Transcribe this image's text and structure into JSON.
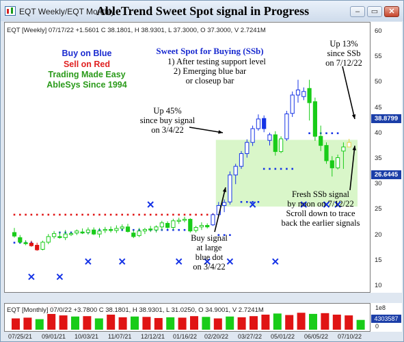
{
  "window": {
    "tabs": "EQT Weekly/EQT Monthly",
    "title": "AbleTrend Sweet Spot signal in Progress",
    "buttons": {
      "minimize": "–",
      "restore": "▭",
      "close": "✕"
    }
  },
  "weekly_panel": {
    "header": "EQT [Weekly] 07/17/22 +1.5601 C 38.1801, H 38.9301, L 37.3000, O 37.3000, V 2.7241M",
    "price_tag": "38.8799",
    "support_tag": "26.6445"
  },
  "monthly_panel": {
    "header": "EQT [Monthly] 07/0/22 +3.7800 C 38.1801, H 38.9301, L 31.0250, O 34.9001, V 2.7241M",
    "scale_label": "1e8",
    "volume_tag": "4303587",
    "zero_label": "0"
  },
  "annotations": {
    "legend": [
      "Buy on Blue",
      "Sell on Red",
      "Trading Made Easy",
      "AbleSys Since 1994"
    ],
    "sweet_spot": [
      "Sweet Spot for Buying (SSb)",
      "1) After testing support level",
      "2) Emerging blue bar",
      "or closeup bar"
    ],
    "up45": [
      "Up 45%",
      "since buy signal",
      "on 3/4/22"
    ],
    "up13": [
      "Up 13%",
      "since SSb",
      "on 7/12/22"
    ],
    "buy_signal": [
      "Buy signal",
      "at large",
      "blue dot",
      "on 3/4/22"
    ],
    "fresh_ssb": [
      "Fresh SSb signal",
      "by noon on 7/12/22",
      "Scroll down to trace",
      "back the earlier signals"
    ]
  },
  "colors": {
    "up": "#19cc19",
    "down": "#e01414",
    "blue_bar": "#1432e6",
    "dot_red": "#e01414",
    "dot_blue": "#1432e6",
    "sweet_spot_zone": "#d2f5c0",
    "price_tag": "#1b3ea8"
  },
  "chart_data": [
    {
      "type": "candlestick",
      "title": "EQT [Weekly]",
      "y_ticks": [
        10,
        15,
        20,
        25,
        30,
        35,
        40,
        45,
        50,
        55,
        60
      ],
      "ylim": [
        8.8,
        61.2
      ],
      "x_ticks": [
        "07/25/21",
        "09/01/21",
        "10/03/21",
        "11/07/21",
        "12/12/21",
        "01/16/22",
        "02/20/22",
        "03/27/22",
        "05/01/22",
        "06/05/22",
        "07/10/22"
      ],
      "weeks": [
        {
          "o": 20.5,
          "h": 21.4,
          "l": 19.5,
          "c": 19.8,
          "col": "g"
        },
        {
          "o": 19.5,
          "h": 20.0,
          "l": 18.4,
          "c": 18.6,
          "col": "g"
        },
        {
          "o": 18.5,
          "h": 19.0,
          "l": 18.0,
          "c": 18.3,
          "col": "g"
        },
        {
          "o": 18.4,
          "h": 18.9,
          "l": 17.7,
          "c": 17.9,
          "col": "r"
        },
        {
          "o": 18.0,
          "h": 18.5,
          "l": 16.9,
          "c": 17.1,
          "col": "r"
        },
        {
          "o": 17.2,
          "h": 18.9,
          "l": 17.0,
          "c": 18.6,
          "col": "g"
        },
        {
          "o": 18.6,
          "h": 20.2,
          "l": 18.2,
          "c": 19.7,
          "col": "g"
        },
        {
          "o": 19.7,
          "h": 20.8,
          "l": 19.3,
          "c": 20.3,
          "col": "g"
        },
        {
          "o": 19.7,
          "h": 20.7,
          "l": 19.3,
          "c": 19.5,
          "col": "g"
        },
        {
          "o": 19.5,
          "h": 21.0,
          "l": 19.0,
          "c": 20.2,
          "col": "g"
        },
        {
          "o": 20.1,
          "h": 20.6,
          "l": 19.8,
          "c": 20.3,
          "col": "g"
        },
        {
          "o": 20.4,
          "h": 21.1,
          "l": 20.0,
          "c": 20.8,
          "col": "g"
        },
        {
          "o": 20.6,
          "h": 21.3,
          "l": 20.2,
          "c": 20.5,
          "col": "g"
        },
        {
          "o": 20.5,
          "h": 21.5,
          "l": 20.1,
          "c": 21.0,
          "col": "g"
        },
        {
          "o": 21.0,
          "h": 21.5,
          "l": 20.0,
          "c": 20.2,
          "col": "g"
        },
        {
          "o": 20.2,
          "h": 21.4,
          "l": 19.5,
          "c": 20.8,
          "col": "g"
        },
        {
          "o": 20.9,
          "h": 21.6,
          "l": 20.4,
          "c": 21.1,
          "col": "g"
        },
        {
          "o": 21.1,
          "h": 21.7,
          "l": 20.5,
          "c": 20.9,
          "col": "g"
        },
        {
          "o": 20.9,
          "h": 21.9,
          "l": 20.4,
          "c": 21.3,
          "col": "g"
        },
        {
          "o": 21.3,
          "h": 22.1,
          "l": 20.9,
          "c": 21.6,
          "col": "g"
        },
        {
          "o": 21.6,
          "h": 22.2,
          "l": 20.5,
          "c": 20.7,
          "col": "g"
        },
        {
          "o": 20.4,
          "h": 21.0,
          "l": 19.4,
          "c": 19.7,
          "col": "g"
        },
        {
          "o": 19.9,
          "h": 21.4,
          "l": 19.6,
          "c": 20.8,
          "col": "g"
        },
        {
          "o": 20.8,
          "h": 21.4,
          "l": 20.2,
          "c": 21.1,
          "col": "g"
        },
        {
          "o": 21.2,
          "h": 21.8,
          "l": 20.6,
          "c": 21.0,
          "col": "g"
        },
        {
          "o": 21.0,
          "h": 21.9,
          "l": 20.5,
          "c": 21.6,
          "col": "g"
        },
        {
          "o": 21.6,
          "h": 22.8,
          "l": 20.9,
          "c": 22.4,
          "col": "g"
        },
        {
          "o": 22.3,
          "h": 22.7,
          "l": 21.2,
          "c": 21.5,
          "col": "g"
        },
        {
          "o": 21.5,
          "h": 23.2,
          "l": 21.0,
          "c": 22.8,
          "col": "g"
        },
        {
          "o": 22.8,
          "h": 23.4,
          "l": 22.2,
          "c": 22.9,
          "col": "g"
        },
        {
          "o": 22.9,
          "h": 23.6,
          "l": 22.5,
          "c": 23.1,
          "col": "g"
        },
        {
          "o": 23.1,
          "h": 23.3,
          "l": 20.5,
          "c": 20.8,
          "col": "g"
        },
        {
          "o": 20.9,
          "h": 21.8,
          "l": 20.5,
          "c": 21.5,
          "col": "g"
        },
        {
          "o": 21.6,
          "h": 22.5,
          "l": 21.0,
          "c": 21.9,
          "col": "g"
        },
        {
          "o": 21.9,
          "h": 22.3,
          "l": 21.3,
          "c": 21.6,
          "col": "g"
        },
        {
          "o": 22.0,
          "h": 24.3,
          "l": 21.8,
          "c": 24.0,
          "col": "b"
        },
        {
          "o": 24.0,
          "h": 26.5,
          "l": 23.5,
          "c": 25.8,
          "col": "b"
        },
        {
          "o": 25.8,
          "h": 27.0,
          "l": 24.5,
          "c": 26.4,
          "col": "b"
        },
        {
          "o": 26.5,
          "h": 32.5,
          "l": 26.0,
          "c": 31.8,
          "col": "b"
        },
        {
          "o": 31.8,
          "h": 34.0,
          "l": 30.0,
          "c": 33.5,
          "col": "b"
        },
        {
          "o": 33.5,
          "h": 36.5,
          "l": 33.0,
          "c": 36.0,
          "col": "b"
        },
        {
          "o": 36.0,
          "h": 38.8,
          "l": 35.2,
          "c": 38.2,
          "col": "b"
        },
        {
          "o": 38.2,
          "h": 41.5,
          "l": 37.5,
          "c": 40.9,
          "col": "b"
        },
        {
          "o": 40.9,
          "h": 43.7,
          "l": 40.5,
          "c": 42.8,
          "col": "b"
        },
        {
          "o": 42.9,
          "h": 43.5,
          "l": 40.2,
          "c": 40.9,
          "col": "b"
        },
        {
          "o": 38.6,
          "h": 40.1,
          "l": 37.6,
          "c": 39.7,
          "col": "b"
        },
        {
          "o": 39.7,
          "h": 40.4,
          "l": 35.6,
          "c": 36.4,
          "col": "g"
        },
        {
          "o": 36.4,
          "h": 39.4,
          "l": 36.1,
          "c": 38.9,
          "col": "g"
        },
        {
          "o": 38.9,
          "h": 44.4,
          "l": 38.5,
          "c": 43.8,
          "col": "b"
        },
        {
          "o": 43.9,
          "h": 48.2,
          "l": 43.2,
          "c": 47.5,
          "col": "b"
        },
        {
          "o": 47.5,
          "h": 50.5,
          "l": 46.0,
          "c": 48.5,
          "col": "b"
        },
        {
          "o": 47.2,
          "h": 49.0,
          "l": 46.5,
          "c": 48.2,
          "col": "b"
        },
        {
          "o": 48.8,
          "h": 50.5,
          "l": 42.5,
          "c": 46.0,
          "col": "g"
        },
        {
          "o": 46.2,
          "h": 47.0,
          "l": 38.5,
          "c": 39.4,
          "col": "g"
        },
        {
          "o": 39.4,
          "h": 41.5,
          "l": 36.5,
          "c": 37.6,
          "col": "g"
        },
        {
          "o": 37.6,
          "h": 38.2,
          "l": 34.0,
          "c": 34.6,
          "col": "g"
        },
        {
          "o": 34.6,
          "h": 35.5,
          "l": 31.5,
          "c": 33.2,
          "col": "g"
        },
        {
          "o": 33.2,
          "h": 35.8,
          "l": 32.9,
          "c": 35.2,
          "col": "g"
        },
        {
          "o": 36.5,
          "h": 38.2,
          "l": 33.0,
          "c": 37.3,
          "col": "g"
        },
        {
          "o": 37.3,
          "h": 38.9,
          "l": 37.3,
          "c": 38.2,
          "col": "y"
        }
      ],
      "red_dots": [
        24,
        24,
        24,
        24,
        24,
        24,
        24,
        24,
        24,
        24,
        24,
        24,
        24,
        24,
        24,
        24,
        24,
        24,
        24,
        24,
        24,
        24,
        24,
        24,
        24,
        24,
        24,
        24,
        24,
        24,
        24,
        24,
        24,
        24,
        24,
        24
      ],
      "blue_dots": [
        18.5,
        18.5,
        18.5,
        18.5,
        20.5,
        20.5,
        20.5,
        20.5,
        20.5,
        20.5,
        20.5,
        21.0,
        21.0,
        21.0,
        21.0,
        21.0,
        21.0,
        21.0,
        21.0,
        21.0,
        21.0,
        21.0,
        21.0,
        21.0,
        21.0,
        21.0,
        21.0,
        20.0,
        20.0,
        20.0,
        26.5,
        26.5,
        26.5,
        26.5,
        33.0,
        33.0,
        33.0,
        33.0,
        33.0,
        33.0,
        40.0,
        40.0,
        40.0,
        40.0,
        40.0,
        40.0
      ],
      "x_marks": [
        11.8,
        11.8,
        14.8,
        14.8,
        14.8,
        14.8,
        14.8,
        14.8,
        26.0,
        26.0,
        26.0,
        26.0,
        26.0
      ],
      "sweet_spot_zone": {
        "from_week": 36,
        "to_week": 60,
        "low": 25.6,
        "high": 38.7
      }
    },
    {
      "type": "bar",
      "title": "EQT [Monthly]",
      "series": [
        {
          "name": "V",
          "values": [
            0.3,
            0.32,
            0.28,
            0.62,
            0.38,
            0.35,
            0.36,
            0.3,
            0.4,
            0.33,
            0.35,
            0.34,
            0.31,
            0.33,
            0.32,
            0.36,
            0.34,
            0.3,
            0.35,
            0.33,
            0.36,
            0.4,
            0.43,
            0.39,
            0.45,
            0.42,
            0.44,
            0.4,
            0.38,
            0.26
          ]
        }
      ]
    }
  ]
}
